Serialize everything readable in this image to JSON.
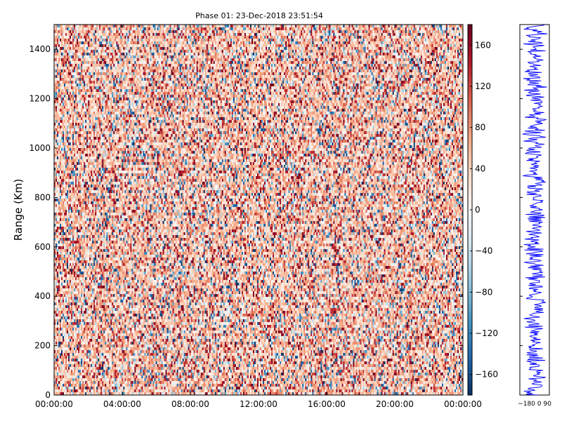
{
  "chart_data": [
    {
      "type": "heatmap",
      "title": "Phase 01: 23-Dec-2018 23:51:54",
      "xlabel": "",
      "ylabel": "Range (Km)",
      "x_tick_labels": [
        "00:00:00",
        "04:00:00",
        "08:00:00",
        "12:00:00",
        "16:00:00",
        "20:00:00",
        "00:00:00"
      ],
      "y_ticks": [
        0,
        200,
        400,
        600,
        800,
        1000,
        1200,
        1400
      ],
      "ylim": [
        0,
        1500
      ],
      "colorbar": {
        "range": [
          -180,
          180
        ],
        "ticks": [
          -160,
          -120,
          -80,
          -40,
          0,
          40,
          80,
          120,
          160
        ],
        "tick_labels": [
          "−160",
          "−120",
          "−80",
          "−40",
          "0",
          "40",
          "80",
          "120",
          "160"
        ],
        "colormap": "RdBu_r"
      },
      "grid": false,
      "description_of_values": "phase values distributed across full range, predominantly positive (light red)"
    },
    {
      "type": "line",
      "xlim": [
        -180,
        180
      ],
      "ylim": [
        0,
        1500
      ],
      "x_tick_labels_text": "−180 0 90",
      "series_color": "#0000ff"
    }
  ],
  "colors": {
    "line": "#0000ff",
    "neg_dark": "#053061",
    "pos_dark": "#67001f"
  }
}
